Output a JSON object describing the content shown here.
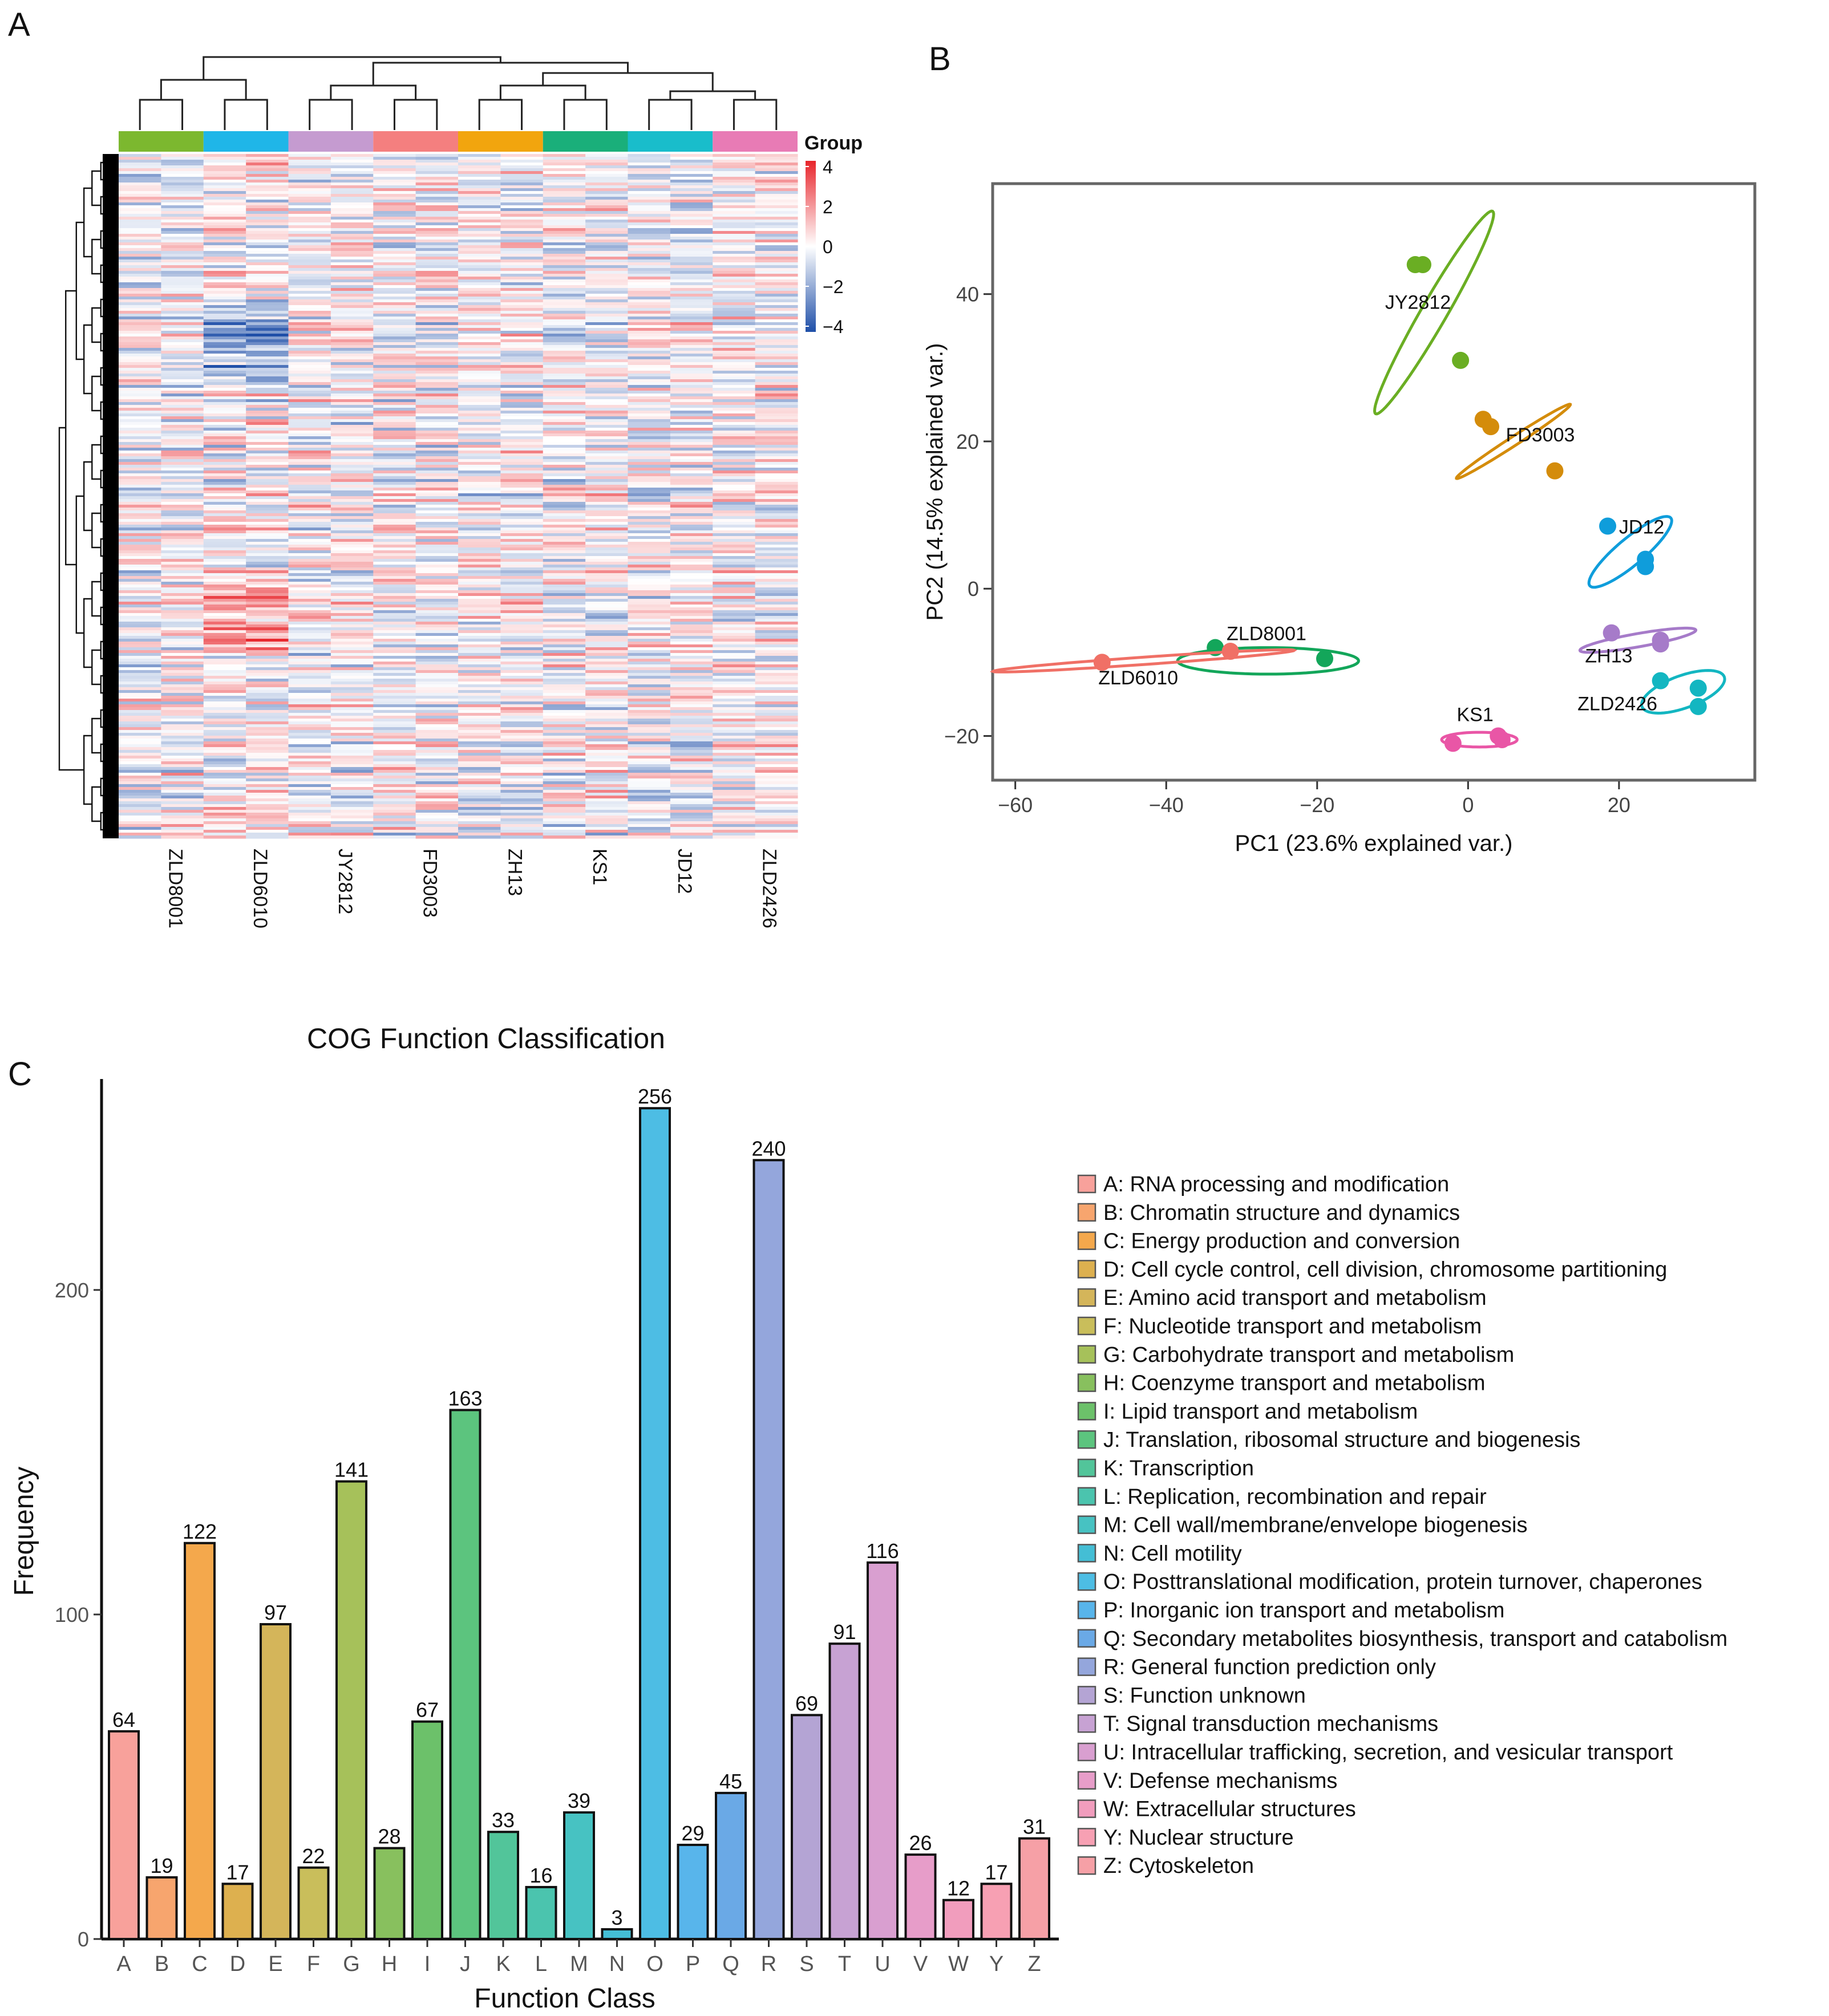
{
  "panels": {
    "a": "A",
    "b": "B",
    "c": "C"
  },
  "chart_data": [
    {
      "type": "heatmap",
      "panel": "A",
      "samples": [
        "ZLD8001",
        "ZLD6010",
        "JY2812",
        "FD3003",
        "ZH13",
        "KS1",
        "JD12",
        "ZLD2426"
      ],
      "group_colors": [
        "#7CB82F",
        "#1FB6E8",
        "#C59BD0",
        "#F47F7F",
        "#F2A50E",
        "#1AAF7A",
        "#19BDCB",
        "#E87BB5"
      ],
      "legend_title": "Group",
      "color_scale": {
        "ticks": [
          "4",
          "2",
          "0",
          "−2",
          "−4"
        ],
        "low": "#1F4FA8",
        "mid": "#FFFFFF",
        "high": "#E8252B"
      }
    },
    {
      "type": "scatter",
      "panel": "B",
      "xlabel": "PC1 (23.6% explained var.)",
      "ylabel": "PC2 (14.5% explained var.)",
      "xlim": [
        -63,
        38
      ],
      "ylim": [
        -26,
        55
      ],
      "xticks": [
        "−60",
        "−40",
        "−20",
        "0",
        "20"
      ],
      "yticks": [
        "−20",
        "0",
        "20",
        "40"
      ],
      "groups": [
        {
          "name": "JY2812",
          "color": "#6AAE23",
          "points": [
            [
              -7,
              44
            ],
            [
              -6,
              44
            ],
            [
              -1,
              31
            ]
          ],
          "ellipse": {
            "cx": -4.5,
            "cy": 37.5,
            "rx": 15.5,
            "ry": 1.7,
            "angle": 60
          },
          "label_at": [
            -11,
            38
          ]
        },
        {
          "name": "FD3003",
          "color": "#D48C0B",
          "points": [
            [
              2,
              23
            ],
            [
              3,
              22
            ],
            [
              11.5,
              16
            ]
          ],
          "ellipse": {
            "cx": 6,
            "cy": 20,
            "rx": 9,
            "ry": 0.6,
            "angle": 33
          },
          "label_at": [
            5,
            20
          ]
        },
        {
          "name": "JD12",
          "color": "#0F9DDB",
          "points": [
            [
              18.5,
              8.5
            ],
            [
              23.5,
              4
            ],
            [
              23.5,
              3
            ]
          ],
          "ellipse": {
            "cx": 21.5,
            "cy": 5,
            "rx": 7,
            "ry": 1.8,
            "angle": 40
          },
          "label_at": [
            20,
            7.5
          ]
        },
        {
          "name": "ZH13",
          "color": "#A67BC9",
          "points": [
            [
              19,
              -6
            ],
            [
              25.5,
              -7
            ],
            [
              25.5,
              -7.5
            ]
          ],
          "ellipse": {
            "cx": 22.5,
            "cy": -7,
            "rx": 7.8,
            "ry": 0.9,
            "angle": 10
          },
          "label_at": [
            15.5,
            -10
          ]
        },
        {
          "name": "ZLD2426",
          "color": "#13B6C1",
          "points": [
            [
              25.5,
              -12.5
            ],
            [
              30.5,
              -13.5
            ],
            [
              30.5,
              -16
            ]
          ],
          "ellipse": {
            "cx": 28.5,
            "cy": -14,
            "rx": 5.8,
            "ry": 2.2,
            "angle": 20
          },
          "label_at": [
            14.5,
            -16.5
          ]
        },
        {
          "name": "KS1",
          "color": "#E956A6",
          "points": [
            [
              -2,
              -21
            ],
            [
              4,
              -20
            ],
            [
              4.5,
              -20.5
            ]
          ],
          "ellipse": {
            "cx": 1.5,
            "cy": -20.5,
            "rx": 5,
            "ry": 1,
            "angle": 0
          },
          "label_at": [
            -1.5,
            -18
          ]
        },
        {
          "name": "ZLD8001",
          "color": "#13A65A",
          "points": [
            [
              -33.5,
              -8
            ],
            [
              -19,
              -9.5
            ]
          ],
          "ellipse": {
            "cx": -26.5,
            "cy": -9.8,
            "rx": 12,
            "ry": 1.8,
            "angle": 0
          },
          "label_at": [
            -32,
            -7
          ]
        },
        {
          "name": "ZLD6010",
          "color": "#F07066",
          "points": [
            [
              -48.5,
              -10
            ],
            [
              -31.5,
              -8.5
            ]
          ],
          "ellipse": {
            "cx": -43,
            "cy": -9.8,
            "rx": 20,
            "ry": 0.5,
            "angle": 4
          },
          "label_at": [
            -49,
            -13
          ]
        }
      ]
    },
    {
      "type": "bar",
      "panel": "C",
      "title": "COG Function Classification",
      "xlabel": "Function Class",
      "ylabel": "Frequency",
      "ylim": [
        0,
        265
      ],
      "yticks": [
        "0",
        "100",
        "200"
      ],
      "categories": [
        "A",
        "B",
        "C",
        "D",
        "E",
        "F",
        "G",
        "H",
        "I",
        "J",
        "K",
        "L",
        "M",
        "N",
        "O",
        "P",
        "Q",
        "R",
        "S",
        "T",
        "U",
        "V",
        "W",
        "Y",
        "Z"
      ],
      "values": [
        64,
        19,
        122,
        17,
        97,
        22,
        141,
        28,
        67,
        163,
        33,
        16,
        39,
        3,
        256,
        29,
        45,
        240,
        69,
        91,
        116,
        26,
        12,
        17,
        31
      ],
      "colors": [
        "#F8A19B",
        "#F7A56E",
        "#F4A84C",
        "#DDB04F",
        "#D4B55A",
        "#C9BE5B",
        "#A6C15A",
        "#88C05E",
        "#6CC16A",
        "#5CC47E",
        "#52C59A",
        "#4BC4AE",
        "#47C2C2",
        "#44BED5",
        "#4DBDE4",
        "#58B5EB",
        "#6AA9E6",
        "#94A6DC",
        "#B4A4D4",
        "#C7A2D3",
        "#D99FD0",
        "#E79DC9",
        "#F19DBD",
        "#F7A0B3",
        "#F6A0A6"
      ],
      "legend": [
        "A: RNA processing and modification",
        "B: Chromatin structure and dynamics",
        "C: Energy production and conversion",
        "D: Cell cycle control, cell division, chromosome partitioning",
        "E: Amino acid transport and metabolism",
        "F: Nucleotide transport and metabolism",
        "G: Carbohydrate transport and metabolism",
        "H: Coenzyme transport and metabolism",
        "I: Lipid transport and metabolism",
        "J: Translation, ribosomal structure and biogenesis",
        "K: Transcription",
        "L: Replication, recombination and repair",
        "M: Cell wall/membrane/envelope biogenesis",
        "N: Cell motility",
        "O: Posttranslational modification, protein turnover, chaperones",
        "P: Inorganic ion transport and metabolism",
        "Q: Secondary metabolites biosynthesis, transport and catabolism",
        "R: General function prediction only",
        "S: Function unknown",
        "T: Signal transduction mechanisms",
        "U: Intracellular trafficking, secretion, and vesicular transport",
        "V: Defense mechanisms",
        "W: Extracellular structures",
        "Y: Nuclear structure",
        "Z: Cytoskeleton"
      ]
    }
  ]
}
